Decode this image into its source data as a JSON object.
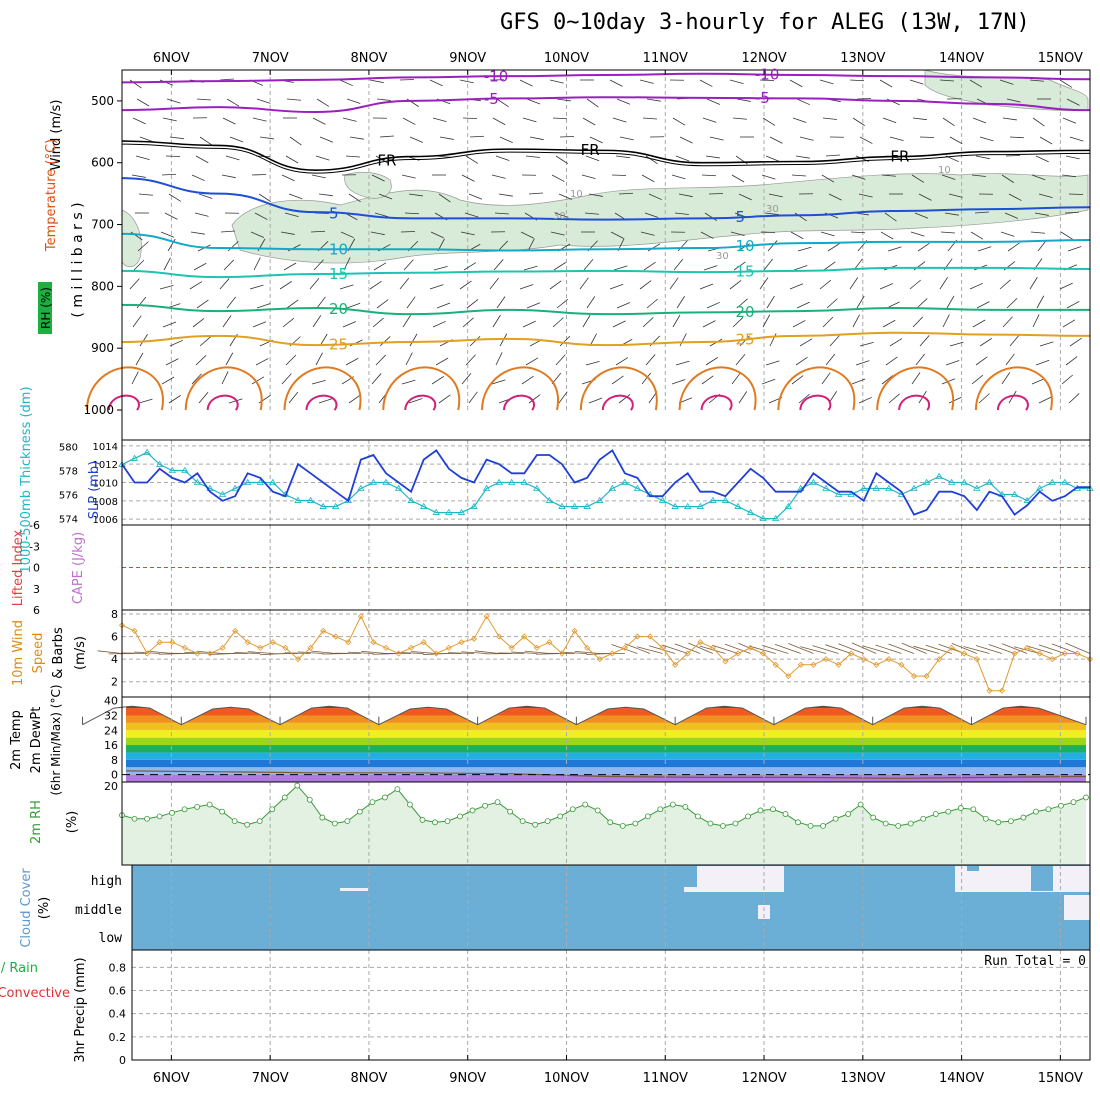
{
  "title": "GFS 0~10day 3-hourly for ALEG (13W, 17N)",
  "colors": {
    "grid": "#aaaaaa",
    "purple": "#9a1fbf",
    "blue": "#1f4fd6",
    "cyan": "#12a9c9",
    "teal": "#1ec4b0",
    "green": "#1bb07a",
    "orange": "#e0a020",
    "dark_orange": "#e07a20",
    "magenta": "#d0207a",
    "rh_fill": "#d8ead8",
    "slp": "#1f3fd6",
    "thickness": "#21b6c6",
    "wind10": "#e09a30",
    "rh2m": "#3a9a3a",
    "cloud": "#6baed6",
    "cloud_clear": "#f4f0f8"
  },
  "chart_data": [
    {
      "type": "line",
      "panel": "upper-air",
      "ylabel_parts": [
        "Wind (m/s)",
        "Temperature (°C)",
        "RH (%)"
      ],
      "ylabel_side": "( m i l l i b a r s )",
      "yticks": [
        "500",
        "600",
        "700",
        "800",
        "900",
        "1000"
      ],
      "ylim": [
        450,
        1000
      ],
      "xticks": [
        "6NOV",
        "7NOV",
        "8NOV",
        "9NOV",
        "10NOV",
        "11NOV",
        "12NOV",
        "13NOV",
        "14NOV",
        "15NOV"
      ],
      "x_days": [
        0.5,
        10.3
      ],
      "contours": [
        {
          "label": "-10",
          "color_key": "purple",
          "labels": [
            "-10",
            "-10"
          ],
          "levels": [
            470,
            468,
            466,
            462,
            460,
            458,
            456,
            458,
            460,
            462,
            465
          ]
        },
        {
          "label": "-5",
          "color_key": "purple",
          "labels": [
            "-5",
            "-5"
          ],
          "levels": [
            515,
            510,
            518,
            500,
            496,
            494,
            495,
            496,
            500,
            505,
            515
          ]
        },
        {
          "label": "FR",
          "color_key": "black",
          "labels": [
            "FR",
            "FR",
            "FR"
          ],
          "levels": [
            565,
            572,
            612,
            590,
            578,
            580,
            600,
            598,
            590,
            582,
            580
          ]
        },
        {
          "label": "5",
          "color_key": "blue",
          "labels": [
            "5",
            "5"
          ],
          "levels": [
            625,
            650,
            680,
            690,
            690,
            692,
            690,
            685,
            678,
            675,
            672
          ]
        },
        {
          "label": "10",
          "color_key": "cyan",
          "labels": [
            "10",
            "10"
          ],
          "levels": [
            715,
            738,
            740,
            740,
            742,
            740,
            738,
            730,
            728,
            728,
            725
          ]
        },
        {
          "label": "15",
          "color_key": "teal",
          "labels": [
            "15",
            "15"
          ],
          "levels": [
            775,
            785,
            780,
            778,
            776,
            775,
            777,
            775,
            770,
            770,
            772
          ]
        },
        {
          "label": "20",
          "color_key": "green",
          "labels": [
            "20",
            "20"
          ],
          "levels": [
            830,
            840,
            835,
            845,
            838,
            845,
            842,
            840,
            835,
            838,
            838
          ]
        },
        {
          "label": "25",
          "color_key": "orange",
          "labels": [
            "25",
            "25"
          ],
          "levels": [
            890,
            880,
            895,
            890,
            885,
            895,
            890,
            880,
            875,
            878,
            880
          ]
        }
      ],
      "rh_labels": [
        "10",
        "30",
        "30",
        "10",
        "30"
      ]
    },
    {
      "type": "line",
      "panel": "slp-thickness",
      "ylabel_left": "1000-500mb Thickness (dm)",
      "ylabel_right": "SLP (mb)",
      "left_ticks": [
        "574",
        "576",
        "578",
        "580"
      ],
      "right_ticks": [
        "1006",
        "1008",
        "1010",
        "1012",
        "1014"
      ],
      "series": [
        {
          "name": "SLP (mb)",
          "color_key": "slp",
          "values": [
            1012,
            1010,
            1010,
            1011.5,
            1010.5,
            1010,
            1011,
            1009,
            1008,
            1008.5,
            1011,
            1010.5,
            1009,
            1008.5,
            1012,
            1011,
            1010,
            1009,
            1008,
            1012.5,
            1013,
            1011,
            1010,
            1009,
            1012.5,
            1013.5,
            1011.5,
            1010.5,
            1010,
            1012.5,
            1012,
            1011,
            1011,
            1013,
            1013,
            1012,
            1010,
            1010.5,
            1012.5,
            1013.5,
            1011,
            1010.5,
            1008.5,
            1008.5,
            1010,
            1011,
            1009,
            1009,
            1008.5,
            1010,
            1011.5,
            1010.5,
            1009,
            1009,
            1009,
            1011,
            1010,
            1009,
            1009,
            1008,
            1011,
            1010,
            1009,
            1006.5,
            1007,
            1009,
            1009,
            1008.5,
            1007,
            1009,
            1008.5,
            1006.5,
            1007.5,
            1009,
            1008,
            1008.5,
            1009.5,
            1009.5
          ]
        },
        {
          "name": "1000-500mb Thickness (dm)",
          "color_key": "thickness",
          "values": [
            578.5,
            579,
            579.5,
            578.5,
            578,
            578,
            577,
            576.5,
            576,
            576.5,
            577,
            577,
            577,
            576,
            575.5,
            575.5,
            575,
            575,
            575.5,
            576.5,
            577,
            577,
            576.5,
            575.5,
            575,
            574.5,
            574.5,
            574.5,
            575,
            576.5,
            577,
            577,
            577,
            576.5,
            575.5,
            575,
            575,
            575,
            575.5,
            576.5,
            577,
            576.5,
            576,
            575.5,
            575,
            575,
            575,
            575.5,
            575.5,
            575,
            574.5,
            574,
            574,
            575,
            576.5,
            577,
            576.5,
            576,
            576,
            576.5,
            576.5,
            576.5,
            576,
            576.5,
            577,
            577.5,
            577,
            577,
            576.5,
            577,
            576,
            576,
            575.5,
            576.5,
            577,
            577,
            576.5,
            576.5
          ]
        }
      ]
    },
    {
      "type": "line",
      "panel": "stability",
      "ylabel_left": "Lifted Index",
      "ylabel_right": "CAPE (J/kg)",
      "yticks": [
        "-6",
        "-3",
        "0",
        "3",
        "6"
      ],
      "ylim": [
        -6,
        6
      ],
      "reference": 0
    },
    {
      "type": "line",
      "panel": "wind10m",
      "ylabel_parts": [
        "10m Wind",
        "Speed",
        "& Barbs",
        "(m/s)"
      ],
      "yticks": [
        "2",
        "4",
        "6",
        "8"
      ],
      "ylim": [
        1,
        8
      ],
      "series": [
        {
          "name": "10m Wind Speed (m/s)",
          "color_key": "wind10",
          "values": [
            7,
            6.5,
            4.5,
            5.5,
            5.5,
            5,
            4.5,
            4.5,
            5,
            6.5,
            5.5,
            5,
            5.5,
            5,
            4,
            5,
            6.5,
            6,
            5.5,
            7.8,
            5.5,
            5,
            4.5,
            5,
            5.5,
            4.5,
            5,
            5.5,
            5.8,
            7.8,
            6,
            5,
            6,
            5,
            5.5,
            4.5,
            6.5,
            5,
            4,
            4.5,
            5,
            6,
            6,
            5,
            3.5,
            4.5,
            5.5,
            5,
            3.8,
            4.5,
            5,
            4.5,
            3.5,
            2.5,
            3.5,
            3.5,
            4,
            3.5,
            4.5,
            4,
            3.5,
            4,
            3.5,
            2.5,
            2.5,
            4,
            5,
            4.5,
            4,
            1.2,
            1.2,
            4.5,
            5,
            4.5,
            4,
            4.5,
            4.5,
            4
          ]
        }
      ]
    },
    {
      "type": "area",
      "panel": "temp2m",
      "ylabel_parts": [
        "2m Temp",
        "2m DewPt",
        "(6hr Min/Max) (°C)"
      ],
      "yticks": [
        "0",
        "8",
        "16",
        "24",
        "32",
        "40"
      ],
      "ylim": [
        -4,
        42
      ],
      "band_colors": [
        "#b07ae0",
        "#8fb8f0",
        "#1f78d8",
        "#23b0e0",
        "#1cb05a",
        "#9ad61a",
        "#f0f020",
        "#f0c020",
        "#f09020",
        "#f05a20",
        "#c81e1e"
      ],
      "series": [
        {
          "name": "2m Temp",
          "peak_values": [
            37,
            36.5,
            37,
            36.5,
            37,
            36.5,
            37,
            37,
            37,
            37
          ],
          "min_values": [
            27,
            27,
            27,
            27,
            27,
            27,
            27,
            27,
            27,
            27
          ]
        },
        {
          "name": "2m DewPt",
          "values": [
            2,
            1.5,
            1,
            1,
            0.5,
            -1,
            -1.5,
            -1.5,
            -2,
            -1.5,
            -1
          ]
        }
      ]
    },
    {
      "type": "line",
      "panel": "rh2m",
      "ylabel_parts": [
        "2m RH",
        "(%)"
      ],
      "yticks": [
        "20"
      ],
      "series": [
        {
          "name": "2m RH (%)",
          "color_key": "rh2m",
          "values": [
            47,
            44,
            44,
            46,
            49,
            52,
            54,
            56,
            50,
            42,
            39,
            42,
            52,
            62,
            72,
            60,
            45,
            40,
            42,
            50,
            58,
            62,
            69,
            56,
            43,
            41,
            42,
            46,
            51,
            55,
            58,
            50,
            42,
            39,
            42,
            46,
            52,
            56,
            51,
            41,
            38,
            40,
            46,
            52,
            56,
            54,
            46,
            40,
            38,
            40,
            46,
            51,
            52,
            48,
            41,
            38,
            38,
            44,
            48,
            56,
            45,
            40,
            38,
            40,
            44,
            48,
            50,
            53,
            52,
            44,
            41,
            42,
            45,
            50,
            52,
            55,
            58,
            62
          ]
        }
      ]
    },
    {
      "type": "heatmap",
      "panel": "cloud",
      "ylabel_parts": [
        "Cloud Cover",
        "(%)"
      ],
      "levels": [
        "high",
        "middle",
        "low"
      ]
    },
    {
      "type": "bar",
      "panel": "precip",
      "ylabel_parts": [
        "Total / Rain",
        "Convective",
        "3hr Precip (mm)"
      ],
      "yticks": [
        "0",
        "0.2",
        "0.4",
        "0.6",
        "0.8"
      ],
      "ylim": [
        0,
        0.95
      ],
      "run_total": "Run Total = 0",
      "values": []
    }
  ]
}
